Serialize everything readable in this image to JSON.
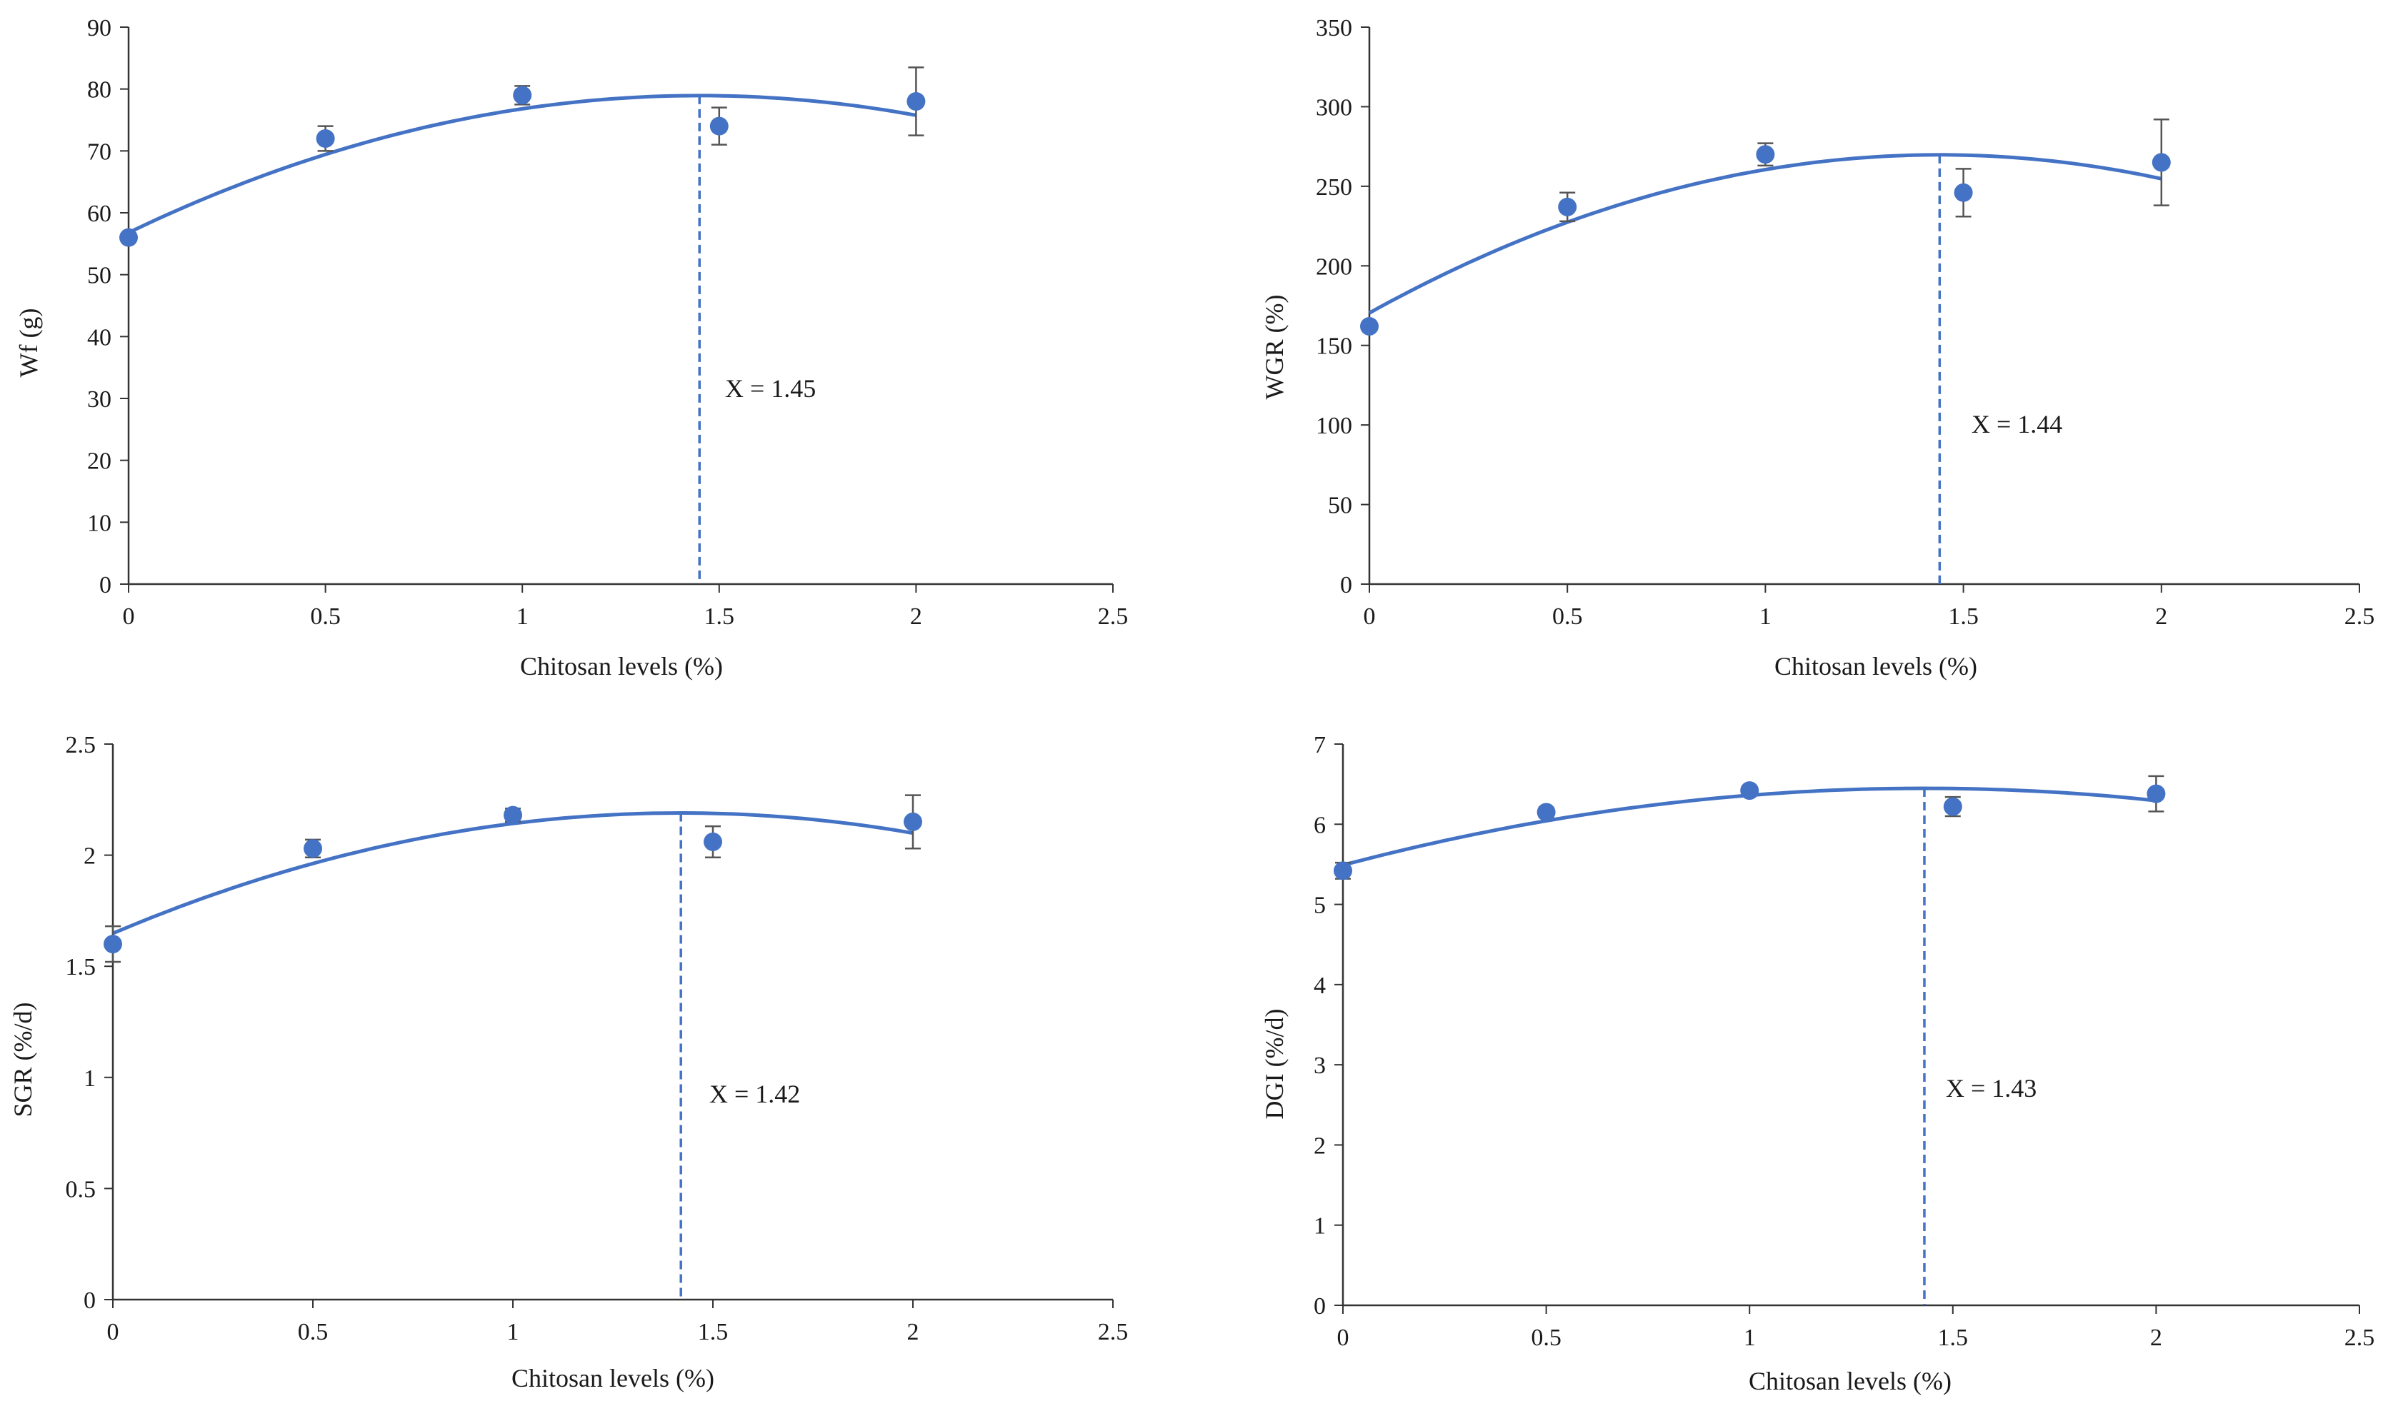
{
  "figure": {
    "colors": {
      "series": "#4472C4",
      "axis": "#333333",
      "errorbar": "#555555",
      "text": "#1a1a1a"
    }
  },
  "chart_data": [
    {
      "type": "scatter",
      "ylabel": "Wf (g)",
      "xlabel": "Chitosan  levels (%)",
      "xlim": [
        0,
        2.5
      ],
      "xticks": [
        0,
        0.5,
        1,
        1.5,
        2,
        2.5
      ],
      "ylim": [
        0,
        90
      ],
      "yticks": [
        0,
        10,
        20,
        30,
        40,
        50,
        60,
        70,
        80,
        90
      ],
      "points": [
        {
          "x": 0,
          "y": 56,
          "err": 0
        },
        {
          "x": 0.5,
          "y": 72,
          "err": 2
        },
        {
          "x": 1,
          "y": 79,
          "err": 1.5
        },
        {
          "x": 1.5,
          "y": 74,
          "err": 3
        },
        {
          "x": 2,
          "y": 78,
          "err": 5.5
        }
      ],
      "fit": {
        "type": "quadratic",
        "coef": [
          -10.52,
          30.52,
          56.8
        ],
        "x_range": [
          0,
          2
        ]
      },
      "optimum": {
        "x": 1.45,
        "label": "X = 1.45"
      }
    },
    {
      "type": "scatter",
      "ylabel": "WGR (%)",
      "xlabel": "Chitosan  levels (%)",
      "xlim": [
        0,
        2.5
      ],
      "xticks": [
        0,
        0.5,
        1,
        1.5,
        2,
        2.5
      ],
      "ylim": [
        0,
        350
      ],
      "yticks": [
        0,
        50,
        100,
        150,
        200,
        250,
        300,
        350
      ],
      "points": [
        {
          "x": 0,
          "y": 162,
          "err": 0
        },
        {
          "x": 0.5,
          "y": 237,
          "err": 9
        },
        {
          "x": 1,
          "y": 270,
          "err": 7
        },
        {
          "x": 1.5,
          "y": 246,
          "err": 15
        },
        {
          "x": 2,
          "y": 265,
          "err": 27
        }
      ],
      "fit": {
        "type": "quadratic",
        "coef": [
          -47.92,
          138,
          170.4
        ],
        "x_range": [
          0,
          2
        ]
      },
      "optimum": {
        "x": 1.44,
        "label": "X = 1.44"
      }
    },
    {
      "type": "scatter",
      "ylabel": "SGR (%/d)",
      "xlabel": "Chitosan  levels (%)",
      "xlim": [
        0,
        2.5
      ],
      "xticks": [
        0,
        0.5,
        1,
        1.5,
        2,
        2.5
      ],
      "ylim": [
        0,
        2.5
      ],
      "yticks": [
        0,
        0.5,
        1,
        1.5,
        2,
        2.5
      ],
      "points": [
        {
          "x": 0,
          "y": 1.6,
          "err": 0.08
        },
        {
          "x": 0.5,
          "y": 2.03,
          "err": 0.04
        },
        {
          "x": 1,
          "y": 2.18,
          "err": 0.03
        },
        {
          "x": 1.5,
          "y": 2.06,
          "err": 0.07
        },
        {
          "x": 2,
          "y": 2.15,
          "err": 0.12
        }
      ],
      "fit": {
        "type": "quadratic",
        "coef": [
          -0.2687,
          0.7631,
          1.648
        ],
        "x_range": [
          0,
          2
        ]
      },
      "optimum": {
        "x": 1.42,
        "label": "X = 1.42"
      }
    },
    {
      "type": "scatter",
      "ylabel": "DGI (%/d)",
      "xlabel": "Chitosan  levels (%)",
      "xlim": [
        0,
        2.5
      ],
      "xticks": [
        0,
        0.5,
        1,
        1.5,
        2,
        2.5
      ],
      "ylim": [
        0,
        7
      ],
      "yticks": [
        0,
        1,
        2,
        3,
        4,
        5,
        6,
        7
      ],
      "points": [
        {
          "x": 0,
          "y": 5.42,
          "err": 0.1
        },
        {
          "x": 0.5,
          "y": 6.15,
          "err": 0.06
        },
        {
          "x": 1,
          "y": 6.42,
          "err": 0.05
        },
        {
          "x": 1.5,
          "y": 6.22,
          "err": 0.12
        },
        {
          "x": 2,
          "y": 6.38,
          "err": 0.22
        }
      ],
      "fit": {
        "type": "quadratic",
        "coef": [
          -0.4683,
          1.3393,
          5.49
        ],
        "x_range": [
          0,
          2
        ]
      },
      "optimum": {
        "x": 1.43,
        "label": "X = 1.43"
      }
    }
  ]
}
